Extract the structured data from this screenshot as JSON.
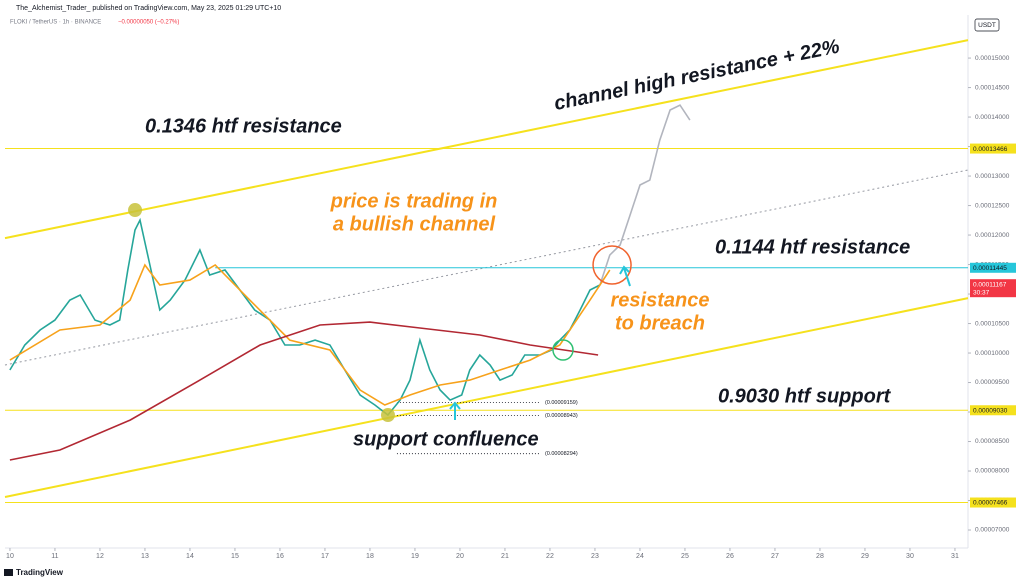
{
  "header": {
    "author_line": "The_Alchemist_Trader_ published on TradingView.com, May 23, 2025 01:29 UTC+10",
    "symbol": "FLOKI / TetherUS · 1h · BINANCE",
    "change": "−0.00000050 (−0.27%)"
  },
  "footer": {
    "brand": "TradingView"
  },
  "chart_data": {
    "type": "line",
    "currency": "USDT",
    "grid": false,
    "xlim": [
      9.89,
      31.29
    ],
    "xticks": [
      10,
      11,
      12,
      13,
      14,
      15,
      16,
      17,
      18,
      19,
      20,
      21,
      22,
      23,
      24,
      25,
      26,
      27,
      28,
      29,
      30,
      31
    ],
    "ylim": [
      6.746e-05,
      0.0001573
    ],
    "yticks": [
      {
        "value": 7e-05,
        "label": "0.00007000"
      },
      {
        "value": 7.5e-05,
        "label": "0.00007500"
      },
      {
        "value": 8e-05,
        "label": "0.00008000"
      },
      {
        "value": 8.5e-05,
        "label": "0.00008500"
      },
      {
        "value": 9e-05,
        "label": "0.00009000"
      },
      {
        "value": 9.5e-05,
        "label": "0.00009500"
      },
      {
        "value": 0.0001,
        "label": "0.00010000"
      },
      {
        "value": 0.000105,
        "label": "0.00010500"
      },
      {
        "value": 0.00011,
        "label": "0.00011000"
      },
      {
        "value": 0.000115,
        "label": "0.00011500"
      },
      {
        "value": 0.00012,
        "label": "0.00012000"
      },
      {
        "value": 0.000125,
        "label": "0.00012500"
      },
      {
        "value": 0.00013,
        "label": "0.00013000"
      },
      {
        "value": 0.000135,
        "label": "0.00013500"
      },
      {
        "value": 0.00014,
        "label": "0.00014000"
      },
      {
        "value": 0.000145,
        "label": "0.00014500"
      },
      {
        "value": 0.00015,
        "label": "0.00015000"
      }
    ],
    "series": [
      {
        "color": "#26a69a",
        "x": [
          10.0,
          10.33,
          10.67,
          11.0,
          11.33,
          11.56,
          11.89,
          12.22,
          12.44,
          12.62,
          12.78,
          12.89,
          13.11,
          13.33,
          13.56,
          13.89,
          14.22,
          14.44,
          14.78,
          15.11,
          15.44,
          15.78,
          16.11,
          16.44,
          16.78,
          17.11,
          17.44,
          17.78,
          18.11,
          18.4,
          18.67,
          18.89,
          19.11,
          19.33,
          19.56,
          19.78,
          20.04,
          20.22,
          20.44,
          20.67,
          20.89,
          21.16,
          21.44,
          21.78,
          22.04,
          22.22,
          22.44,
          22.67,
          22.89,
          23.11
        ],
        "values": [
          9.712e-05,
          0.00010136,
          0.0001039,
          0.00010559,
          0.00010898,
          0.00010983,
          0.00010559,
          0.00010475,
          0.00010559,
          0.00011407,
          0.00012085,
          0.00012254,
          0.00011492,
          0.00010729,
          0.00010898,
          0.00011237,
          0.00011746,
          0.00011322,
          0.00011407,
          0.00011068,
          0.00010729,
          0.00010559,
          0.00010136,
          0.00010136,
          0.0001022,
          0.00010136,
          9.712e-05,
          9.288e-05,
          9.119e-05,
          8.949e-05,
          9.203e-05,
          9.542e-05,
          0.0001022,
          9.712e-05,
          9.373e-05,
          9.203e-05,
          9.288e-05,
          9.712e-05,
          9.966e-05,
          9.797e-05,
          9.542e-05,
          9.627e-05,
          9.966e-05,
          9.966e-05,
          0.00010051,
          0.0001022,
          0.0001039,
          0.00010729,
          0.00011068,
          0.00011153
        ]
      },
      {
        "color": "#b2b5be",
        "x": [
          23.11,
          23.33,
          23.56,
          23.78,
          24.0,
          24.22,
          24.44,
          24.67,
          24.89,
          25.11
        ],
        "values": [
          0.00011153,
          0.00011661,
          0.00011831,
          0.00012339,
          0.00012848,
          0.00012932,
          0.0001361,
          0.00014119,
          0.00014203,
          0.00013949
        ]
      },
      {
        "color": "#f7a21b",
        "x": [
          10.0,
          11.11,
          12.0,
          12.67,
          13.0,
          13.33,
          14.0,
          14.56,
          15.33,
          16.22,
          17.11,
          17.78,
          18.33,
          18.89,
          19.56,
          20.22,
          20.89,
          21.56,
          22.22,
          22.89,
          23.33
        ],
        "values": [
          9.881e-05,
          0.0001039,
          0.00010475,
          0.00010898,
          0.00011492,
          0.00011153,
          0.00011237,
          0.00011492,
          0.00010898,
          0.0001022,
          0.00010051,
          9.373e-05,
          9.119e-05,
          9.288e-05,
          9.458e-05,
          9.542e-05,
          9.712e-05,
          9.881e-05,
          0.00010136,
          0.00010898,
          0.00011407
        ]
      },
      {
        "color": "#b22833",
        "x": [
          10.0,
          11.11,
          12.67,
          14.22,
          15.56,
          16.89,
          18.0,
          19.11,
          20.44,
          21.56,
          23.07
        ],
        "values": [
          8.186e-05,
          8.356e-05,
          8.864e-05,
          9.542e-05,
          0.00010136,
          0.00010475,
          0.00010525,
          0.00010424,
          0.00010305,
          0.00010136,
          9.966e-05
        ]
      }
    ],
    "channel": [
      {
        "color": "#f5e11d",
        "x": [
          9.89,
          31.29
        ],
        "values": [
          0.00011949,
          0.00015305
        ]
      },
      {
        "color": "#9598a1",
        "dashed": true,
        "x": [
          9.89,
          31.29
        ],
        "values": [
          9.797e-05,
          0.00013102
        ]
      },
      {
        "color": "#f5e11d",
        "x": [
          9.89,
          31.29
        ],
        "values": [
          7.559e-05,
          0.00010932
        ]
      }
    ],
    "levels": [
      {
        "value": 0.00013466,
        "color": "#f5e11d",
        "x0": 9.89
      },
      {
        "value": 0.00011445,
        "color": "#26c6da",
        "x0": 14.56
      },
      {
        "value": 9.03e-05,
        "label": "0.00009030",
        "color": "#f5e11d",
        "x0": 9.89
      },
      {
        "value": 7.466e-05,
        "color": "#f5e11d",
        "x0": 9.89
      }
    ],
    "last_price": {
      "value": 0.00011167,
      "countdown": "30:37",
      "color": "#f23645"
    },
    "marks": [
      {
        "value": 9.159e-05,
        "label": "(0.00009159)",
        "x": [
          18.6,
          21.8
        ]
      },
      {
        "value": 8.943e-05,
        "label": "(0.00008943)",
        "x": [
          18.6,
          21.8
        ]
      },
      {
        "value": 8.294e-05,
        "label": "(0.00008294)",
        "x": [
          18.6,
          21.8
        ]
      }
    ],
    "points": [
      {
        "x": 12.78,
        "value": 0.00012424,
        "color": "#c8c23a"
      },
      {
        "x": 18.4,
        "value": 8.949e-05,
        "color": "#c8c23a"
      },
      {
        "x": 23.38,
        "value": 0.00011492,
        "color": "#f0632e"
      },
      {
        "x": 22.29,
        "value": 0.00010051,
        "color": "#2fbf71"
      }
    ],
    "annotations": [
      {
        "lines": [
          "channel high resistance + 22%"
        ],
        "color": "#131722"
      },
      {
        "lines": [
          "0.1346 htf resistance"
        ],
        "color": "#131722"
      },
      {
        "lines": [
          "price is trading in",
          "a bullish channel"
        ],
        "color": "#f7931a"
      },
      {
        "lines": [
          "0.1144 htf resistance"
        ],
        "color": "#131722"
      },
      {
        "lines": [
          "resistance",
          "to breach"
        ],
        "color": "#f7931a"
      },
      {
        "lines": [
          "0.9030 htf support"
        ],
        "color": "#131722"
      },
      {
        "lines": [
          "support confluence"
        ],
        "color": "#131722"
      }
    ]
  }
}
